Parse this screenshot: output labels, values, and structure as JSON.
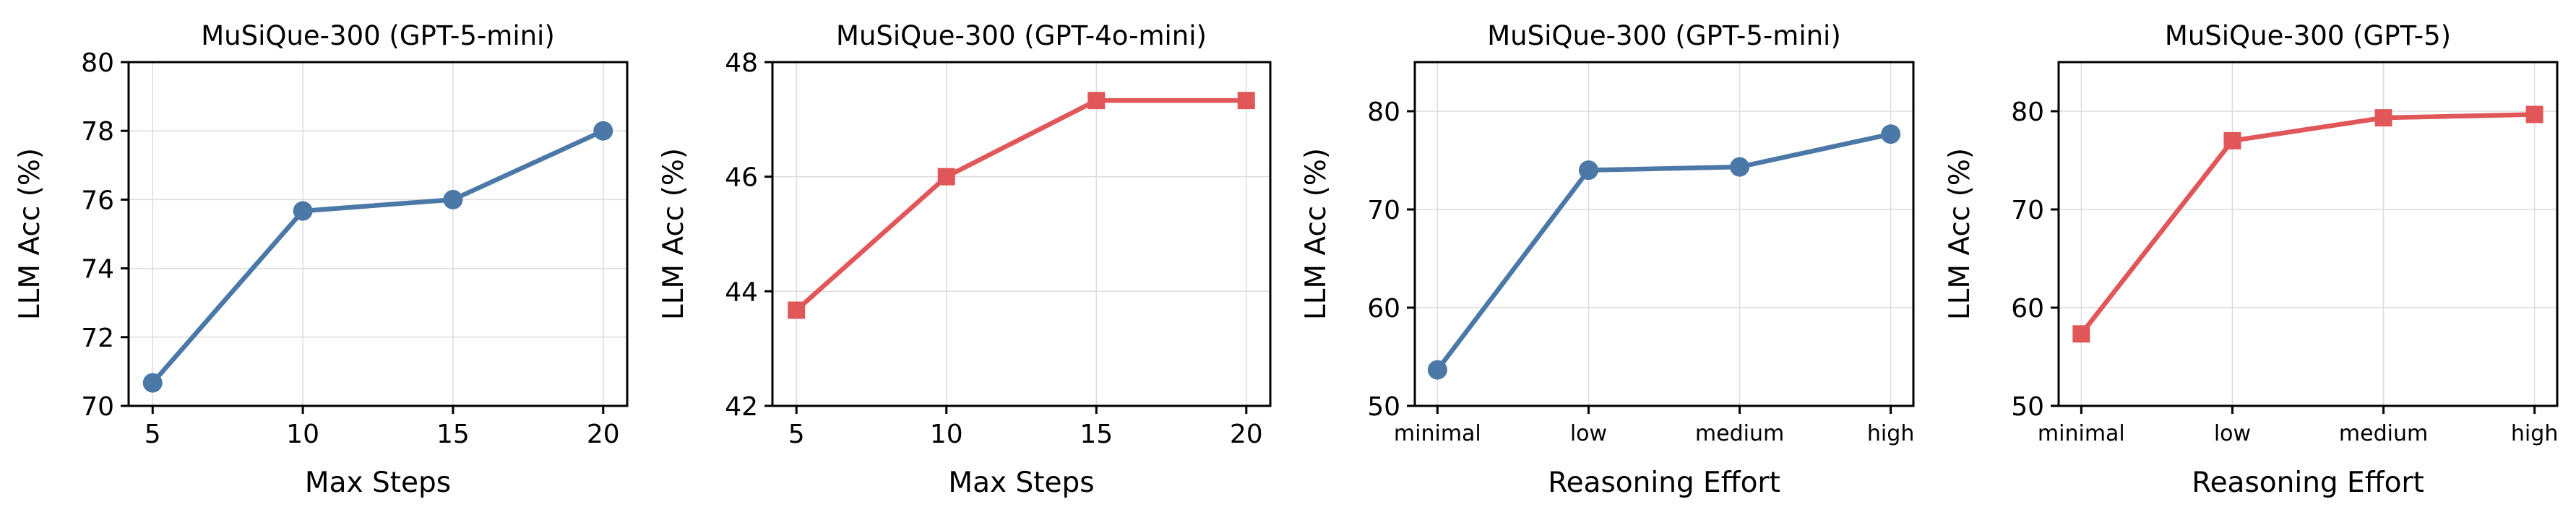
{
  "colors": {
    "blue": "#4C78A8",
    "red": "#E15759"
  },
  "chart_data": [
    {
      "type": "line",
      "title": "MuSiQue-300 (GPT-5-mini)",
      "xlabel": "Max Steps",
      "ylabel": "LLM Acc (%)",
      "x": [
        5,
        10,
        15,
        20
      ],
      "x_ticks": [
        "5",
        "10",
        "15",
        "20"
      ],
      "xlim": [
        4.2,
        20.8
      ],
      "ylim": [
        70,
        80
      ],
      "y_ticks": [
        70,
        72,
        74,
        76,
        78,
        80
      ],
      "series": [
        {
          "values": [
            70.67,
            75.67,
            76.0,
            78.0
          ],
          "color": "blue",
          "marker": "circle"
        }
      ],
      "grid": true
    },
    {
      "type": "line",
      "title": "MuSiQue-300 (GPT-4o-mini)",
      "xlabel": "Max Steps",
      "ylabel": "LLM Acc (%)",
      "x": [
        5,
        10,
        15,
        20
      ],
      "x_ticks": [
        "5",
        "10",
        "15",
        "20"
      ],
      "xlim": [
        4.2,
        20.8
      ],
      "ylim": [
        42,
        48
      ],
      "y_ticks": [
        42,
        44,
        46,
        48
      ],
      "series": [
        {
          "values": [
            43.67,
            46.0,
            47.33,
            47.33
          ],
          "color": "red",
          "marker": "square"
        }
      ],
      "grid": true
    },
    {
      "type": "line",
      "title": "MuSiQue-300 (GPT-5-mini)",
      "xlabel": "Reasoning Effort",
      "ylabel": "LLM Acc (%)",
      "categories": [
        "minimal",
        "low",
        "medium",
        "high"
      ],
      "xlim": [
        -0.15,
        3.15
      ],
      "ylim": [
        50,
        85
      ],
      "y_ticks": [
        50,
        60,
        70,
        80
      ],
      "series": [
        {
          "values": [
            53.67,
            74.0,
            74.33,
            77.67
          ],
          "color": "blue",
          "marker": "circle"
        }
      ],
      "grid": true
    },
    {
      "type": "line",
      "title": "MuSiQue-300 (GPT-5)",
      "xlabel": "Reasoning Effort",
      "ylabel": "LLM Acc (%)",
      "categories": [
        "minimal",
        "low",
        "medium",
        "high"
      ],
      "xlim": [
        -0.15,
        3.15
      ],
      "ylim": [
        50,
        85
      ],
      "y_ticks": [
        50,
        60,
        70,
        80
      ],
      "series": [
        {
          "values": [
            57.33,
            77.0,
            79.33,
            79.67
          ],
          "color": "red",
          "marker": "square"
        }
      ],
      "grid": true
    }
  ]
}
